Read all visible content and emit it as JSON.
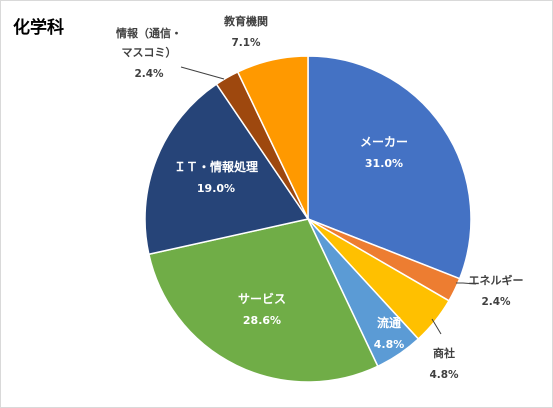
{
  "chart_data": {
    "type": "pie",
    "title": "化学科",
    "start_angle_deg": 0,
    "direction": "clockwise",
    "slices": [
      {
        "label": "メーカー",
        "value": 31.0,
        "value_label": "31.0%",
        "color": "#4472C4",
        "label_position": "inside"
      },
      {
        "label": "エネルギー",
        "value": 2.4,
        "value_label": "2.4%",
        "color": "#ED7D31",
        "label_position": "outside"
      },
      {
        "label": "商社",
        "value": 4.8,
        "value_label": "4.8%",
        "color": "#FFC000",
        "label_position": "outside"
      },
      {
        "label": "流通",
        "value": 4.8,
        "value_label": "4.8%",
        "color": "#5B9BD5",
        "label_position": "inside"
      },
      {
        "label": "サービス",
        "value": 28.6,
        "value_label": "28.6%",
        "color": "#70AD47",
        "label_position": "inside"
      },
      {
        "label": "ＩＴ・情報処理",
        "value": 19.0,
        "value_label": "19.0%",
        "color": "#264478",
        "label_position": "inside"
      },
      {
        "label": [
          "情報（通信・",
          "マスコミ）"
        ],
        "value": 2.4,
        "value_label": "2.4%",
        "color": "#9E480E",
        "label_position": "outside"
      },
      {
        "label": "教育機関",
        "value": 7.1,
        "value_label": "7.1%",
        "color": "#FF9900",
        "label_position": "outside"
      }
    ]
  }
}
